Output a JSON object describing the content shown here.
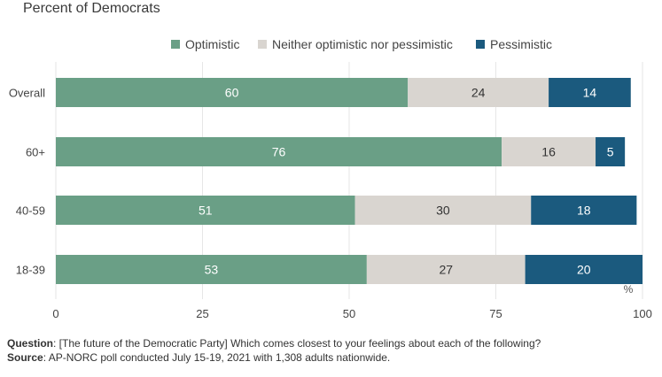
{
  "subtitle": "Percent of Democrats",
  "legend": [
    {
      "label": "Optimistic",
      "color": "#6a9f86"
    },
    {
      "label": "Neither optimistic nor pessimistic",
      "color": "#d9d5d0"
    },
    {
      "label": "Pessimistic",
      "color": "#1b5a7e"
    }
  ],
  "chart_data": {
    "type": "bar",
    "orientation": "horizontal",
    "stacked": true,
    "categories": [
      "Overall",
      "60+",
      "40-59",
      "18-39"
    ],
    "series": [
      {
        "name": "Optimistic",
        "values": [
          60,
          76,
          51,
          53
        ],
        "color": "#6a9f86"
      },
      {
        "name": "Neither optimistic nor pessimistic",
        "values": [
          24,
          16,
          30,
          27
        ],
        "color": "#d9d5d0"
      },
      {
        "name": "Pessimistic",
        "values": [
          14,
          5,
          18,
          20
        ],
        "color": "#1b5a7e"
      }
    ],
    "xlim": [
      0,
      100
    ],
    "xticks": [
      "0",
      "25",
      "50",
      "75",
      "100"
    ],
    "unit_label": "%",
    "label_colors": [
      "#ffffff",
      "#333333",
      "#ffffff"
    ]
  },
  "footer": {
    "question_label": "Question",
    "question_text": ": [The future of the Democratic Party] Which comes closest to your feelings about each of the following?",
    "source_label": "Source",
    "source_text": ": AP-NORC poll conducted July 15-19, 2021 with 1,308 adults nationwide."
  }
}
